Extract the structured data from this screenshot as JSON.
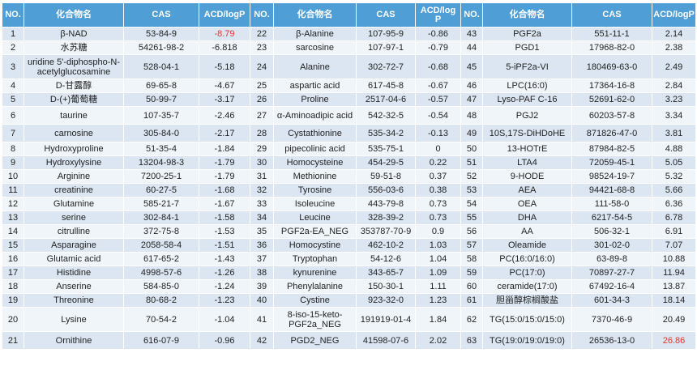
{
  "table": {
    "headers": [
      "NO.",
      "化合物名",
      "CAS",
      "ACD/logP",
      "NO.",
      "化合物名",
      "CAS",
      "ACD/log\nP",
      "NO.",
      "化合物名",
      "CAS",
      "ACD/logP"
    ],
    "rows": [
      [
        "1",
        "β-NAD",
        "53-84-9",
        "-8.79",
        "22",
        "β-Alanine",
        "107-95-9",
        "-0.86",
        "43",
        "PGF2a",
        "551-11-1",
        "2.14"
      ],
      [
        "2",
        "水苏糖",
        "54261-98-2",
        "-6.818",
        "23",
        "sarcosine",
        "107-97-1",
        "-0.79",
        "44",
        "PGD1",
        "17968-82-0",
        "2.38"
      ],
      [
        "3",
        "uridine 5'-diphospho-N-acetylglucosamine",
        "528-04-1",
        "-5.18",
        "24",
        "Alanine",
        "302-72-7",
        "-0.68",
        "45",
        "5-iPF2a-VI",
        "180469-63-0",
        "2.49"
      ],
      [
        "4",
        "D-甘露醇",
        "69-65-8",
        "-4.67",
        "25",
        "aspartic acid",
        "617-45-8",
        "-0.67",
        "46",
        "LPC(16:0)",
        "17364-16-8",
        "2.84"
      ],
      [
        "5",
        "D-(+)葡萄糖",
        "50-99-7",
        "-3.17",
        "26",
        "Proline",
        "2517-04-6",
        "-0.57",
        "47",
        "Lyso-PAF C-16",
        "52691-62-0",
        "3.23"
      ],
      [
        "6",
        "taurine",
        "107-35-7",
        "-2.46",
        "27",
        "α-Aminoadipic acid",
        "542-32-5",
        "-0.54",
        "48",
        "PGJ2",
        "60203-57-8",
        "3.34"
      ],
      [
        "7",
        "carnosine",
        "305-84-0",
        "-2.17",
        "28",
        "Cystathionine",
        "535-34-2",
        "-0.13",
        "49",
        "10S,17S-DiHDoHE",
        "871826-47-0",
        "3.81"
      ],
      [
        "8",
        "Hydroxyproline",
        "51-35-4",
        "-1.84",
        "29",
        "pipecolinic acid",
        "535-75-1",
        "0",
        "50",
        "13-HOTrE",
        "87984-82-5",
        "4.88"
      ],
      [
        "9",
        "Hydroxylysine",
        "13204-98-3",
        "-1.79",
        "30",
        "Homocysteine",
        "454-29-5",
        "0.22",
        "51",
        "LTA4",
        "72059-45-1",
        "5.05"
      ],
      [
        "10",
        "Arginine",
        "7200-25-1",
        "-1.79",
        "31",
        "Methionine",
        "59-51-8",
        "0.37",
        "52",
        "9-HODE",
        "98524-19-7",
        "5.32"
      ],
      [
        "11",
        "creatinine",
        "60-27-5",
        "-1.68",
        "32",
        "Tyrosine",
        "556-03-6",
        "0.38",
        "53",
        "AEA",
        "94421-68-8",
        "5.66"
      ],
      [
        "12",
        "Glutamine",
        "585-21-7",
        "-1.67",
        "33",
        "Isoleucine",
        "443-79-8",
        "0.73",
        "54",
        "OEA",
        "111-58-0",
        "6.36"
      ],
      [
        "13",
        "serine",
        "302-84-1",
        "-1.58",
        "34",
        "Leucine",
        "328-39-2",
        "0.73",
        "55",
        "DHA",
        "6217-54-5",
        "6.78"
      ],
      [
        "14",
        "citrulline",
        "372-75-8",
        "-1.53",
        "35",
        "PGF2a-EA_NEG",
        "353787-70-9",
        "0.9",
        "56",
        "AA",
        "506-32-1",
        "6.91"
      ],
      [
        "15",
        "Asparagine",
        "2058-58-4",
        "-1.51",
        "36",
        "Homocystine",
        "462-10-2",
        "1.03",
        "57",
        "Oleamide",
        "301-02-0",
        "7.07"
      ],
      [
        "16",
        "Glutamic acid",
        "617-65-2",
        "-1.43",
        "37",
        "Tryptophan",
        "54-12-6",
        "1.04",
        "58",
        "PC(16:0/16:0)",
        "63-89-8",
        "10.88"
      ],
      [
        "17",
        "Histidine",
        "4998-57-6",
        "-1.26",
        "38",
        "kynurenine",
        "343-65-7",
        "1.09",
        "59",
        "PC(17:0)",
        "70897-27-7",
        "11.94"
      ],
      [
        "18",
        "Anserine",
        "584-85-0",
        "-1.24",
        "39",
        "Phenylalanine",
        "150-30-1",
        "1.11",
        "60",
        "ceramide(17:0)",
        "67492-16-4",
        "13.87"
      ],
      [
        "19",
        "Threonine",
        "80-68-2",
        "-1.23",
        "40",
        "Cystine",
        "923-32-0",
        "1.23",
        "61",
        "胆甾醇棕榈酸盐",
        "601-34-3",
        "18.14"
      ],
      [
        "20",
        "Lysine",
        "70-54-2",
        "-1.04",
        "41",
        "8-iso-15-keto-PGF2a_NEG",
        "191919-01-4",
        "1.84",
        "62",
        "TG(15:0/15:0/15:0)",
        "7370-46-9",
        "20.49"
      ],
      [
        "21",
        "Ornithine",
        "616-07-9",
        "-0.96",
        "42",
        "PGD2_NEG",
        "41598-07-6",
        "2.02",
        "63",
        "TG(19:0/19:0/19:0)",
        "26536-13-0",
        "26.86"
      ]
    ],
    "highlight_color": "#e0352b"
  }
}
